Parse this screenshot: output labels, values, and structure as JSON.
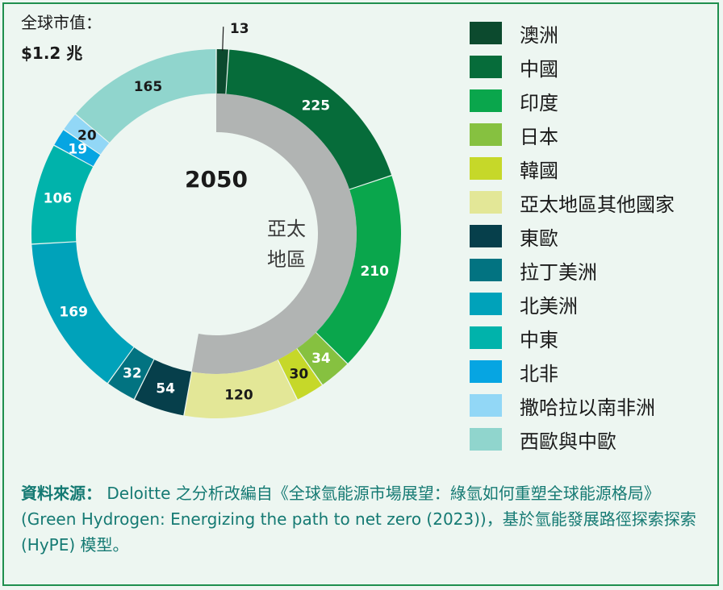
{
  "total": {
    "label": "全球市值：",
    "value": "$1.2 兆"
  },
  "chart_data": {
    "type": "pie",
    "year": "2050",
    "highlight_label_line1": "亞太",
    "highlight_label_line2": "地區",
    "highlight_color": "#b1b4b3",
    "series": [
      {
        "name": "澳洲",
        "value": 13,
        "color": "#0c4a2e",
        "group": "亞太地區"
      },
      {
        "name": "中國",
        "value": 225,
        "color": "#066c3a",
        "group": "亞太地區"
      },
      {
        "name": "印度",
        "value": 210,
        "color": "#0aa64c",
        "group": "亞太地區"
      },
      {
        "name": "日本",
        "value": 34,
        "color": "#86c140",
        "group": "亞太地區"
      },
      {
        "name": "韓國",
        "value": 30,
        "color": "#c6d829",
        "group": "亞太地區"
      },
      {
        "name": "亞太地區其他國家",
        "value": 120,
        "color": "#e3e797",
        "group": "亞太地區"
      },
      {
        "name": "東歐",
        "value": 54,
        "color": "#063f4b",
        "group": ""
      },
      {
        "name": "拉丁美洲",
        "value": 32,
        "color": "#027381",
        "group": ""
      },
      {
        "name": "北美洲",
        "value": 169,
        "color": "#00a2ba",
        "group": ""
      },
      {
        "name": "中東",
        "value": 106,
        "color": "#00b3ab",
        "group": ""
      },
      {
        "name": "北非",
        "value": 19,
        "color": "#06a5e2",
        "group": ""
      },
      {
        "name": "撒哈拉以南非洲",
        "value": 20,
        "color": "#92d7f6",
        "group": ""
      },
      {
        "name": "西歐與中歐",
        "value": 165,
        "color": "#90d5cd",
        "group": ""
      }
    ]
  },
  "source": {
    "label": "資料來源：",
    "text": "Deloitte 之分析改編自《全球氫能源市場展望：綠氫如何重塑全球能源格局》(Green Hydrogen: Energizing the path to net zero (2023))，基於氫能發展路徑探索探索 (HyPE) 模型。"
  }
}
